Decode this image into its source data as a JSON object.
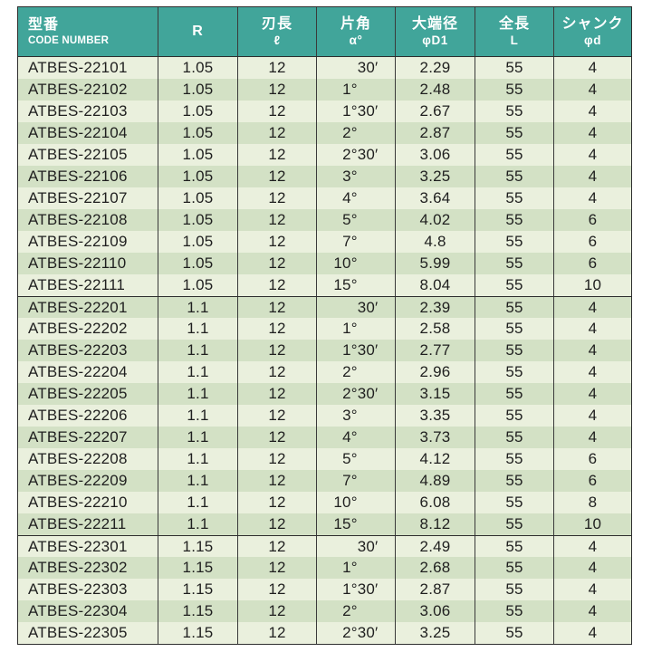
{
  "colors": {
    "header_bg": "#41a59a",
    "header_text": "#ffffff",
    "row_light": "#eaf0dd",
    "row_dark": "#d3e1c5",
    "border": "#2e2e2e",
    "text": "#1f1f1f"
  },
  "table": {
    "columns": [
      {
        "jp": "型番",
        "sub": "CODE NUMBER"
      },
      {
        "jp": "R",
        "sub": ""
      },
      {
        "jp": "刃長",
        "sub": "ℓ"
      },
      {
        "jp": "片角",
        "sub": "α°"
      },
      {
        "jp": "大端径",
        "sub": "φD1"
      },
      {
        "jp": "全長",
        "sub": "L"
      },
      {
        "jp": "シャンク",
        "sub": "φd"
      }
    ],
    "groups": [
      {
        "rows": [
          {
            "code": "ATBES-22101",
            "r": "1.05",
            "flute": "12",
            "deg": "",
            "min": "30′",
            "dia": "2.29",
            "len": "55",
            "shank": "4"
          },
          {
            "code": "ATBES-22102",
            "r": "1.05",
            "flute": "12",
            "deg": "1°",
            "min": "",
            "dia": "2.48",
            "len": "55",
            "shank": "4"
          },
          {
            "code": "ATBES-22103",
            "r": "1.05",
            "flute": "12",
            "deg": "1°",
            "min": "30′",
            "dia": "2.67",
            "len": "55",
            "shank": "4"
          },
          {
            "code": "ATBES-22104",
            "r": "1.05",
            "flute": "12",
            "deg": "2°",
            "min": "",
            "dia": "2.87",
            "len": "55",
            "shank": "4"
          },
          {
            "code": "ATBES-22105",
            "r": "1.05",
            "flute": "12",
            "deg": "2°",
            "min": "30′",
            "dia": "3.06",
            "len": "55",
            "shank": "4"
          },
          {
            "code": "ATBES-22106",
            "r": "1.05",
            "flute": "12",
            "deg": "3°",
            "min": "",
            "dia": "3.25",
            "len": "55",
            "shank": "4"
          },
          {
            "code": "ATBES-22107",
            "r": "1.05",
            "flute": "12",
            "deg": "4°",
            "min": "",
            "dia": "3.64",
            "len": "55",
            "shank": "4"
          },
          {
            "code": "ATBES-22108",
            "r": "1.05",
            "flute": "12",
            "deg": "5°",
            "min": "",
            "dia": "4.02",
            "len": "55",
            "shank": "6"
          },
          {
            "code": "ATBES-22109",
            "r": "1.05",
            "flute": "12",
            "deg": "7°",
            "min": "",
            "dia": "4.8",
            "len": "55",
            "shank": "6"
          },
          {
            "code": "ATBES-22110",
            "r": "1.05",
            "flute": "12",
            "deg": "10°",
            "min": "",
            "dia": "5.99",
            "len": "55",
            "shank": "6"
          },
          {
            "code": "ATBES-22111",
            "r": "1.05",
            "flute": "12",
            "deg": "15°",
            "min": "",
            "dia": "8.04",
            "len": "55",
            "shank": "10"
          }
        ]
      },
      {
        "rows": [
          {
            "code": "ATBES-22201",
            "r": "1.1",
            "flute": "12",
            "deg": "",
            "min": "30′",
            "dia": "2.39",
            "len": "55",
            "shank": "4"
          },
          {
            "code": "ATBES-22202",
            "r": "1.1",
            "flute": "12",
            "deg": "1°",
            "min": "",
            "dia": "2.58",
            "len": "55",
            "shank": "4"
          },
          {
            "code": "ATBES-22203",
            "r": "1.1",
            "flute": "12",
            "deg": "1°",
            "min": "30′",
            "dia": "2.77",
            "len": "55",
            "shank": "4"
          },
          {
            "code": "ATBES-22204",
            "r": "1.1",
            "flute": "12",
            "deg": "2°",
            "min": "",
            "dia": "2.96",
            "len": "55",
            "shank": "4"
          },
          {
            "code": "ATBES-22205",
            "r": "1.1",
            "flute": "12",
            "deg": "2°",
            "min": "30′",
            "dia": "3.15",
            "len": "55",
            "shank": "4"
          },
          {
            "code": "ATBES-22206",
            "r": "1.1",
            "flute": "12",
            "deg": "3°",
            "min": "",
            "dia": "3.35",
            "len": "55",
            "shank": "4"
          },
          {
            "code": "ATBES-22207",
            "r": "1.1",
            "flute": "12",
            "deg": "4°",
            "min": "",
            "dia": "3.73",
            "len": "55",
            "shank": "4"
          },
          {
            "code": "ATBES-22208",
            "r": "1.1",
            "flute": "12",
            "deg": "5°",
            "min": "",
            "dia": "4.12",
            "len": "55",
            "shank": "6"
          },
          {
            "code": "ATBES-22209",
            "r": "1.1",
            "flute": "12",
            "deg": "7°",
            "min": "",
            "dia": "4.89",
            "len": "55",
            "shank": "6"
          },
          {
            "code": "ATBES-22210",
            "r": "1.1",
            "flute": "12",
            "deg": "10°",
            "min": "",
            "dia": "6.08",
            "len": "55",
            "shank": "8"
          },
          {
            "code": "ATBES-22211",
            "r": "1.1",
            "flute": "12",
            "deg": "15°",
            "min": "",
            "dia": "8.12",
            "len": "55",
            "shank": "10"
          }
        ]
      },
      {
        "rows": [
          {
            "code": "ATBES-22301",
            "r": "1.15",
            "flute": "12",
            "deg": "",
            "min": "30′",
            "dia": "2.49",
            "len": "55",
            "shank": "4"
          },
          {
            "code": "ATBES-22302",
            "r": "1.15",
            "flute": "12",
            "deg": "1°",
            "min": "",
            "dia": "2.68",
            "len": "55",
            "shank": "4"
          },
          {
            "code": "ATBES-22303",
            "r": "1.15",
            "flute": "12",
            "deg": "1°",
            "min": "30′",
            "dia": "2.87",
            "len": "55",
            "shank": "4"
          },
          {
            "code": "ATBES-22304",
            "r": "1.15",
            "flute": "12",
            "deg": "2°",
            "min": "",
            "dia": "3.06",
            "len": "55",
            "shank": "4"
          },
          {
            "code": "ATBES-22305",
            "r": "1.15",
            "flute": "12",
            "deg": "2°",
            "min": "30′",
            "dia": "3.25",
            "len": "55",
            "shank": "4"
          }
        ]
      }
    ]
  }
}
